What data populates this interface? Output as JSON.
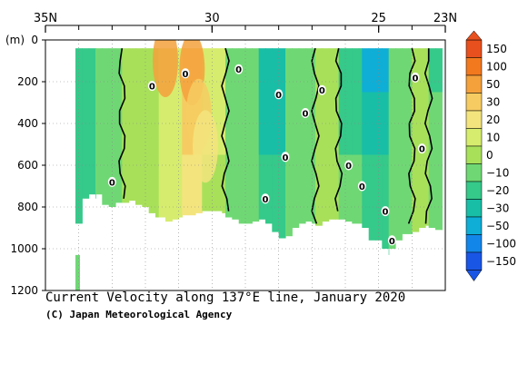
{
  "chart_data": {
    "type": "heatmap",
    "title": "Current Velocity along 137°E line, January 2020",
    "credit": "(C) Japan Meteorological Agency",
    "xlabel": "",
    "ylabel": "(m)",
    "x_ticks": [
      "35N",
      "30",
      "25",
      "23N"
    ],
    "x_tick_values": [
      35,
      30,
      25,
      23
    ],
    "xlim": [
      35,
      23
    ],
    "y_ticks": [
      "0",
      "200",
      "400",
      "600",
      "800",
      "1000",
      "1200"
    ],
    "y_tick_values": [
      0,
      200,
      400,
      600,
      800,
      1000,
      1200
    ],
    "ylim": [
      0,
      1200
    ],
    "colorbar_labels": [
      "150",
      "100",
      "50",
      "30",
      "20",
      "10",
      "0",
      "−10",
      "−20",
      "−30",
      "−50",
      "−100",
      "−150"
    ],
    "colorbar_colors": [
      "#e8501d",
      "#f2791e",
      "#f4a13c",
      "#f6cc62",
      "#f3e47e",
      "#d6ec6e",
      "#a8e05a",
      "#6fd874",
      "#35c98a",
      "#18bea6",
      "#0eaed6",
      "#1386ea",
      "#1a56e6"
    ],
    "zero_contour_labels": [
      "0",
      "0",
      "0",
      "0",
      "0",
      "0",
      "0",
      "0",
      "0",
      "0",
      "0",
      "0",
      "0",
      "0",
      "0"
    ],
    "data_top_depth": 40,
    "data_bottom_depth": [
      [
        34.1,
        880
      ],
      [
        33.9,
        820
      ],
      [
        33.7,
        760
      ],
      [
        33.5,
        740
      ],
      [
        33.3,
        760
      ],
      [
        33.1,
        790
      ],
      [
        32.9,
        800
      ],
      [
        32.7,
        780
      ],
      [
        32.5,
        770
      ],
      [
        32.3,
        790
      ],
      [
        32.1,
        790
      ],
      [
        31.9,
        800
      ],
      [
        31.7,
        830
      ],
      [
        31.5,
        850
      ],
      [
        31.3,
        870
      ],
      [
        31.1,
        860
      ],
      [
        30.9,
        850
      ],
      [
        30.7,
        840
      ],
      [
        30.5,
        840
      ],
      [
        30.3,
        830
      ],
      [
        30.1,
        820
      ],
      [
        29.9,
        820
      ],
      [
        29.7,
        830
      ],
      [
        29.5,
        850
      ],
      [
        29.3,
        860
      ],
      [
        29.1,
        880
      ],
      [
        28.9,
        880
      ],
      [
        28.7,
        870
      ],
      [
        28.5,
        860
      ],
      [
        28.3,
        880
      ],
      [
        28.1,
        920
      ],
      [
        27.9,
        950
      ],
      [
        27.7,
        940
      ],
      [
        27.5,
        900
      ],
      [
        27.3,
        880
      ],
      [
        27.1,
        870
      ],
      [
        26.9,
        880
      ],
      [
        26.7,
        890
      ],
      [
        26.5,
        870
      ],
      [
        26.3,
        860
      ],
      [
        26.1,
        860
      ],
      [
        25.9,
        870
      ],
      [
        25.7,
        880
      ],
      [
        25.5,
        880
      ],
      [
        25.3,
        900
      ],
      [
        25.1,
        960
      ],
      [
        24.9,
        1000
      ],
      [
        24.7,
        1030
      ],
      [
        24.5,
        1000
      ],
      [
        24.3,
        960
      ],
      [
        24.1,
        930
      ],
      [
        23.9,
        920
      ],
      [
        23.7,
        900
      ],
      [
        23.5,
        890
      ],
      [
        23.3,
        900
      ],
      [
        23.1,
        910
      ]
    ],
    "velocity_bands": [
      {
        "from_lat": 34.1,
        "to_lat": 33.5,
        "value": -15
      },
      {
        "from_lat": 33.5,
        "to_lat": 32.7,
        "value": -5
      },
      {
        "from_lat": 32.7,
        "to_lat": 31.6,
        "value": 5
      },
      {
        "from_lat": 31.6,
        "to_lat": 30.9,
        "value": 15
      },
      {
        "from_lat": 30.9,
        "to_lat": 30.3,
        "value": 30
      },
      {
        "from_lat": 30.3,
        "to_lat": 29.6,
        "value": 12
      },
      {
        "from_lat": 29.6,
        "to_lat": 28.6,
        "value": -8
      },
      {
        "from_lat": 28.6,
        "to_lat": 27.8,
        "value": -22
      },
      {
        "from_lat": 27.8,
        "to_lat": 26.9,
        "value": -6
      },
      {
        "from_lat": 26.9,
        "to_lat": 26.2,
        "value": 4
      },
      {
        "from_lat": 26.2,
        "to_lat": 25.5,
        "value": -12
      },
      {
        "from_lat": 25.5,
        "to_lat": 24.7,
        "value": -25
      },
      {
        "from_lat": 24.7,
        "to_lat": 24.0,
        "value": -8
      },
      {
        "from_lat": 24.0,
        "to_lat": 23.5,
        "value": 3
      },
      {
        "from_lat": 23.5,
        "to_lat": 23.1,
        "value": -10
      }
    ],
    "warm_core": [
      {
        "lat": 31.4,
        "depth": 40,
        "value": 60
      },
      {
        "lat": 30.6,
        "depth": 80,
        "value": 80
      },
      {
        "lat": 30.4,
        "depth": 300,
        "value": 35
      },
      {
        "lat": 30.2,
        "depth": 450,
        "value": 25
      }
    ],
    "grid": true,
    "legend_placement": "right"
  }
}
